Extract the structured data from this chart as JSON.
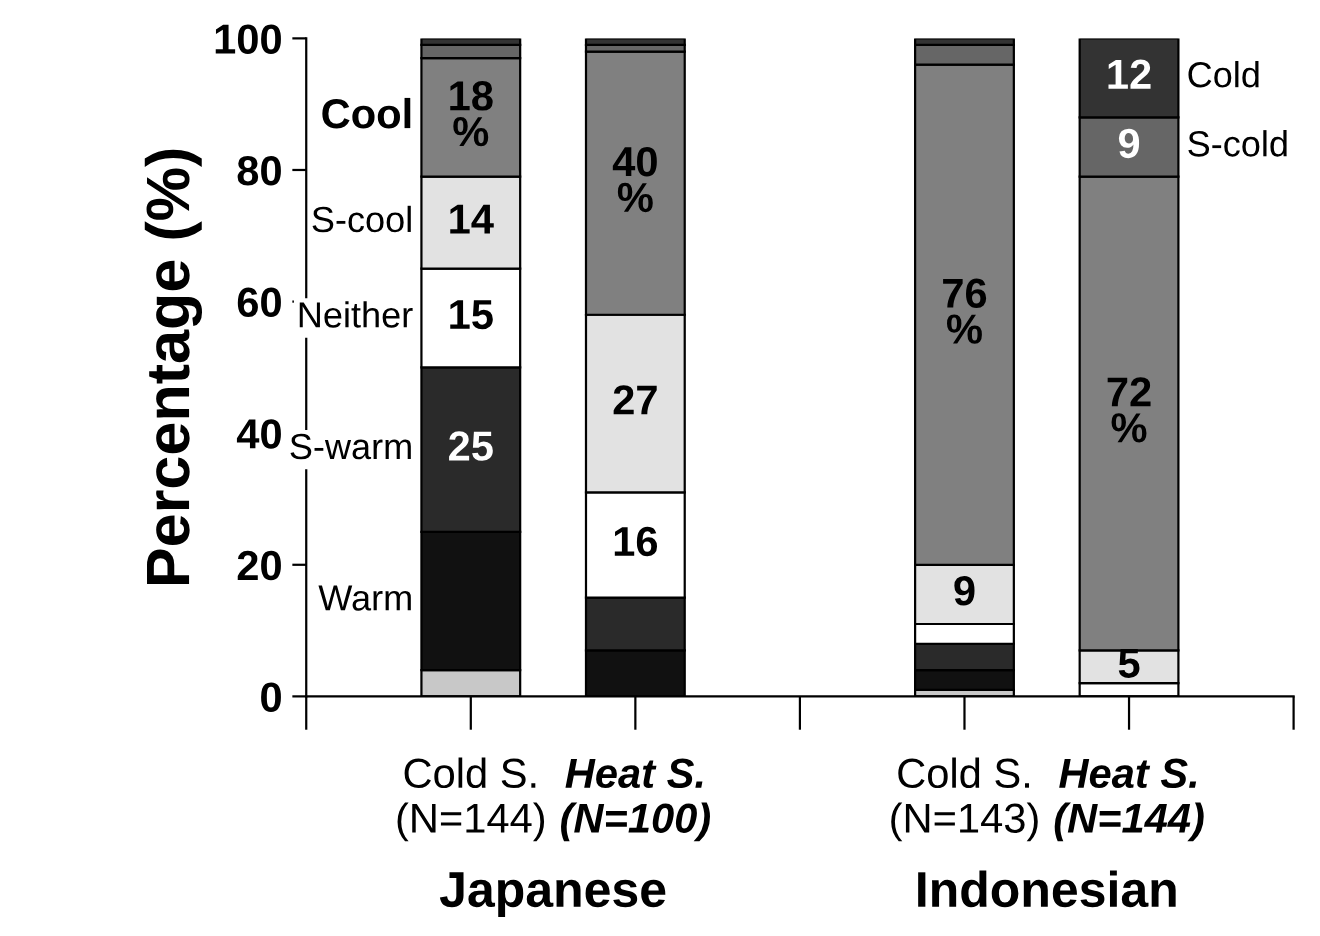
{
  "chart_data": {
    "type": "bar",
    "stacked": true,
    "ylabel": "Percentage (%)",
    "categories": [
      "Cold S.\n(N=144)",
      "Heat S.\n(N=100)",
      null,
      "Cold S.\n(N=143)",
      "Heat S.\n(N=144)"
    ],
    "annotations": [
      "Japanese",
      "Indonesian"
    ],
    "ylim": [
      0,
      100
    ],
    "yticks": [
      0,
      20,
      40,
      60,
      80,
      100
    ],
    "grid": false,
    "legend": false,
    "series": [
      {
        "color": "#c8c8c8",
        "values": [
          4,
          0,
          null,
          1,
          0
        ],
        "value_labels": [
          null,
          null,
          null,
          null,
          null
        ]
      },
      {
        "name": "Warm",
        "color": "#111111",
        "values": [
          21,
          7,
          null,
          3,
          0
        ],
        "value_labels": [
          null,
          null,
          null,
          null,
          null
        ]
      },
      {
        "name": "S-warm",
        "color": "#2a2a2a",
        "values": [
          25,
          8,
          null,
          4,
          0
        ],
        "value_labels": [
          "25",
          null,
          null,
          null,
          null
        ]
      },
      {
        "name": "Neither",
        "color": "#ffffff",
        "values": [
          15,
          16,
          null,
          3,
          2
        ],
        "value_labels": [
          "15",
          "16",
          null,
          null,
          null
        ]
      },
      {
        "name": "S-cool",
        "color": "#e2e2e2",
        "values": [
          14,
          27,
          null,
          9,
          5
        ],
        "value_labels": [
          "14",
          "27",
          null,
          "9",
          "5"
        ]
      },
      {
        "name": "Cool",
        "color": "#808080",
        "values": [
          18,
          40,
          null,
          76,
          72
        ],
        "value_labels": [
          "18\n%",
          "40\n%",
          null,
          "76\n%",
          "72\n%"
        ]
      },
      {
        "name": "S-cold",
        "color": "#666666",
        "values": [
          2,
          1,
          null,
          3,
          9
        ],
        "value_labels": [
          null,
          null,
          null,
          null,
          "9"
        ]
      },
      {
        "name": "Cold",
        "color": "#333333",
        "values": [
          1,
          1,
          null,
          1,
          12
        ],
        "value_labels": [
          null,
          null,
          null,
          null,
          "12"
        ]
      }
    ]
  }
}
